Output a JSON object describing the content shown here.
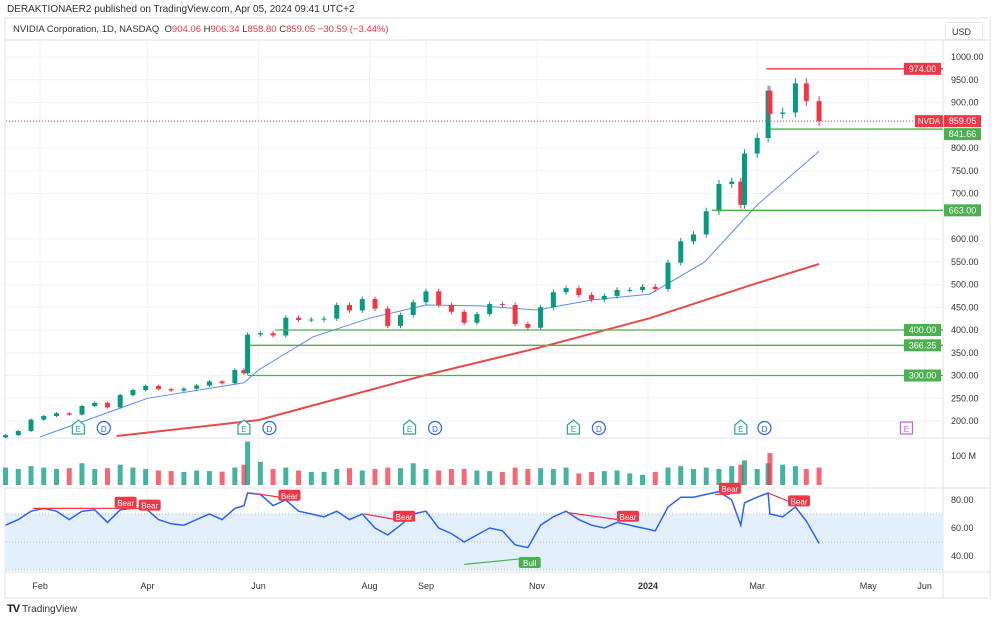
{
  "publish_line": "DERAKTIONAER2 published on TradingView.com, Apr 05, 2024 09:41 UTC+2",
  "legend": {
    "symbol": "NVIDIA Corporation, 1D, NASDAQ",
    "o_label": "O",
    "o": "904.06",
    "h_label": "H",
    "h": "906.34",
    "l_label": "L",
    "l": "858.80",
    "c_label": "C",
    "c": "859.05",
    "change": "−30.59 (−3.44%)"
  },
  "currency": "USD",
  "footer_logo": "TradingView",
  "colors": {
    "up": "#089981",
    "down": "#f23645",
    "sma50": "#5b8def",
    "sma200": "#e84a4a",
    "level_green": "#4caf50",
    "level_red": "#f23645",
    "rsi": "#2962ff",
    "rsi_band": "#e3f0fc",
    "earnings": "#26a69a",
    "dividend": "#2962ff",
    "earnings_future": "#d05ce3"
  },
  "chart_data": {
    "type": "candlestick",
    "symbol_label": "NVDA",
    "last_price": 859.05,
    "y_ticks": [
      "1000.00",
      "950.00",
      "900.00",
      "800.00",
      "750.00",
      "700.00",
      "600.00",
      "550.00",
      "500.00",
      "450.00",
      "400.00",
      "350.00",
      "300.00",
      "250.00",
      "200.00"
    ],
    "ylim": [
      170,
      1010
    ],
    "x_ticks": [
      {
        "label": "Feb",
        "date": "2023-02-01"
      },
      {
        "label": "Apr",
        "date": "2023-04-01"
      },
      {
        "label": "Jun",
        "date": "2023-06-01"
      },
      {
        "label": "Aug",
        "date": "2023-08-01"
      },
      {
        "label": "Sep",
        "date": "2023-09-01"
      },
      {
        "label": "Nov",
        "date": "2023-11-01"
      },
      {
        "label": "2024",
        "date": "2024-01-01"
      },
      {
        "label": "Mar",
        "date": "2024-03-01"
      },
      {
        "label": "May",
        "date": "2024-05-01"
      },
      {
        "label": "Jun",
        "date": "2024-06-01"
      }
    ],
    "candles": [
      [
        "2023-01-13",
        169,
        60,
        62
      ],
      [
        "2023-01-20",
        178,
        55,
        66
      ],
      [
        "2023-01-27",
        203,
        65,
        72
      ],
      [
        "2023-02-03",
        211,
        60,
        74
      ],
      [
        "2023-02-10",
        217,
        55,
        72
      ],
      [
        "2023-02-17",
        214,
        58,
        66
      ],
      [
        "2023-02-24",
        233,
        75,
        72
      ],
      [
        "2023-03-03",
        240,
        55,
        73
      ],
      [
        "2023-03-10",
        230,
        58,
        64
      ],
      [
        "2023-03-17",
        257,
        70,
        73
      ],
      [
        "2023-03-24",
        268,
        60,
        74
      ],
      [
        "2023-03-31",
        277,
        55,
        74
      ],
      [
        "2023-04-07",
        270,
        50,
        66
      ],
      [
        "2023-04-14",
        267,
        48,
        63
      ],
      [
        "2023-04-21",
        271,
        45,
        62
      ],
      [
        "2023-04-28",
        278,
        50,
        66
      ],
      [
        "2023-05-05",
        287,
        48,
        70
      ],
      [
        "2023-05-12",
        283,
        46,
        66
      ],
      [
        "2023-05-19",
        312,
        60,
        74
      ],
      [
        "2023-05-24",
        305,
        70,
        76
      ],
      [
        "2023-05-26",
        390,
        150,
        85
      ],
      [
        "2023-06-02",
        393,
        80,
        84
      ],
      [
        "2023-06-09",
        388,
        55,
        76
      ],
      [
        "2023-06-16",
        427,
        60,
        80
      ],
      [
        "2023-06-23",
        422,
        50,
        72
      ],
      [
        "2023-06-30",
        423,
        45,
        70
      ],
      [
        "2023-07-07",
        425,
        45,
        68
      ],
      [
        "2023-07-14",
        455,
        55,
        72
      ],
      [
        "2023-07-21",
        443,
        58,
        66
      ],
      [
        "2023-07-28",
        468,
        50,
        70
      ],
      [
        "2023-08-04",
        447,
        55,
        60
      ],
      [
        "2023-08-11",
        409,
        60,
        55
      ],
      [
        "2023-08-18",
        433,
        58,
        62
      ],
      [
        "2023-08-25",
        461,
        75,
        70
      ],
      [
        "2023-09-01",
        485,
        55,
        72
      ],
      [
        "2023-09-08",
        455,
        50,
        60
      ],
      [
        "2023-09-15",
        440,
        55,
        56
      ],
      [
        "2023-09-22",
        416,
        55,
        50
      ],
      [
        "2023-09-29",
        435,
        50,
        55
      ],
      [
        "2023-10-06",
        457,
        48,
        60
      ],
      [
        "2023-10-13",
        455,
        45,
        58
      ],
      [
        "2023-10-20",
        413,
        60,
        48
      ],
      [
        "2023-10-27",
        405,
        55,
        46
      ],
      [
        "2023-11-03",
        450,
        58,
        62
      ],
      [
        "2023-11-10",
        483,
        55,
        68
      ],
      [
        "2023-11-17",
        492,
        60,
        72
      ],
      [
        "2023-11-24",
        477,
        40,
        66
      ],
      [
        "2023-12-01",
        467,
        45,
        62
      ],
      [
        "2023-12-08",
        475,
        48,
        60
      ],
      [
        "2023-12-15",
        488,
        50,
        64
      ],
      [
        "2023-12-22",
        488,
        40,
        62
      ],
      [
        "2023-12-29",
        495,
        35,
        60
      ],
      [
        "2024-01-05",
        490,
        45,
        58
      ],
      [
        "2024-01-12",
        548,
        60,
        75
      ],
      [
        "2024-01-19",
        595,
        65,
        82
      ],
      [
        "2024-01-26",
        610,
        55,
        82
      ],
      [
        "2024-02-02",
        661,
        60,
        84
      ],
      [
        "2024-02-09",
        721,
        55,
        86
      ],
      [
        "2024-02-16",
        726,
        65,
        80
      ],
      [
        "2024-02-21",
        675,
        70,
        62
      ],
      [
        "2024-02-23",
        788,
        85,
        78
      ],
      [
        "2024-03-01",
        822,
        55,
        82
      ],
      [
        "2024-03-07",
        926,
        75,
        85
      ],
      [
        "2024-03-08",
        875,
        110,
        70
      ],
      [
        "2024-03-15",
        878,
        70,
        68
      ],
      [
        "2024-03-22",
        942,
        65,
        75
      ],
      [
        "2024-03-28",
        903,
        55,
        65
      ],
      [
        "2024-04-04",
        859,
        60,
        49
      ]
    ],
    "candle_fields": [
      "date",
      "close",
      "volume_millions",
      "rsi"
    ],
    "sma50": [
      [
        "2023-02-01",
        165
      ],
      [
        "2023-04-01",
        250
      ],
      [
        "2023-05-24",
        284
      ],
      [
        "2023-06-01",
        312
      ],
      [
        "2023-07-01",
        385
      ],
      [
        "2023-08-01",
        426
      ],
      [
        "2023-09-01",
        455
      ],
      [
        "2023-10-01",
        453
      ],
      [
        "2023-11-01",
        444
      ],
      [
        "2023-12-01",
        466
      ],
      [
        "2024-01-02",
        479
      ],
      [
        "2024-02-01",
        549
      ],
      [
        "2024-03-01",
        675
      ],
      [
        "2024-04-04",
        793
      ]
    ],
    "sma200": [
      [
        "2023-03-15",
        167
      ],
      [
        "2023-06-01",
        202
      ],
      [
        "2023-08-01",
        268
      ],
      [
        "2023-09-01",
        301
      ],
      [
        "2023-11-01",
        360
      ],
      [
        "2024-01-02",
        426
      ],
      [
        "2024-03-01",
        503
      ],
      [
        "2024-04-04",
        545
      ]
    ],
    "levels": [
      {
        "label": "974.00",
        "value": 974,
        "from": "2024-03-06",
        "color": "red"
      },
      {
        "label": "841.66",
        "value": 841.66,
        "from": "2024-03-08",
        "color": "green"
      },
      {
        "label": "663.00",
        "value": 663,
        "from": "2024-02-05",
        "color": "green"
      },
      {
        "label": "400.00",
        "value": 400,
        "from": "2023-06-10",
        "color": "green"
      },
      {
        "label": "366.35",
        "value": 366.35,
        "from": "2023-05-27",
        "color": "green"
      },
      {
        "label": "300.00",
        "value": 300,
        "from": "2023-05-26",
        "color": "green"
      }
    ],
    "events": [
      {
        "type": "E",
        "date": "2023-02-22"
      },
      {
        "type": "D",
        "date": "2023-03-08"
      },
      {
        "type": "E",
        "date": "2023-05-24"
      },
      {
        "type": "D",
        "date": "2023-06-07"
      },
      {
        "type": "E",
        "date": "2023-08-23"
      },
      {
        "type": "D",
        "date": "2023-09-06"
      },
      {
        "type": "E",
        "date": "2023-11-21"
      },
      {
        "type": "D",
        "date": "2023-12-05"
      },
      {
        "type": "E",
        "date": "2024-02-21"
      },
      {
        "type": "D",
        "date": "2024-03-05"
      },
      {
        "type": "E",
        "date": "2024-05-22",
        "future": true
      }
    ],
    "volume_tick": "100 M",
    "rsi_ticks": [
      "80.00",
      "60.00",
      "40.00"
    ],
    "rsi_band": [
      30,
      70
    ],
    "divergences": [
      {
        "label": "Bear",
        "from": [
          "2023-01-28",
          74
        ],
        "to": [
          "2023-03-31",
          74
        ],
        "labels_at": [
          [
            "2023-03-20",
            78
          ],
          [
            "2023-03-31",
            76
          ]
        ]
      },
      {
        "label": "Bear",
        "from": [
          "2023-05-28",
          85
        ],
        "to": [
          "2023-06-18",
          81
        ],
        "labels_at": [
          [
            "2023-06-18",
            83
          ]
        ]
      },
      {
        "label": "Bear",
        "from": [
          "2023-07-29",
          70
        ],
        "to": [
          "2023-08-20",
          65
        ],
        "labels_at": [
          [
            "2023-08-20",
            68
          ]
        ]
      },
      {
        "label": "Bull",
        "from": [
          "2023-09-22",
          34
        ],
        "to": [
          "2023-10-23",
          38
        ],
        "labels_at": [
          [
            "2023-10-28",
            35
          ]
        ],
        "bull": true
      },
      {
        "label": "Bear",
        "from": [
          "2023-11-18",
          71
        ],
        "to": [
          "2023-12-21",
          65
        ],
        "labels_at": [
          [
            "2023-12-21",
            68
          ]
        ]
      },
      {
        "label": "Bear",
        "from": [
          "2024-02-07",
          84
        ],
        "to": [
          "2024-02-15",
          84
        ],
        "labels_at": [
          [
            "2024-02-15",
            88
          ]
        ]
      },
      {
        "label": "Bear",
        "from": [
          "2024-03-07",
          85
        ],
        "to": [
          "2024-03-24",
          76
        ],
        "labels_at": [
          [
            "2024-03-24",
            79
          ]
        ]
      }
    ]
  }
}
